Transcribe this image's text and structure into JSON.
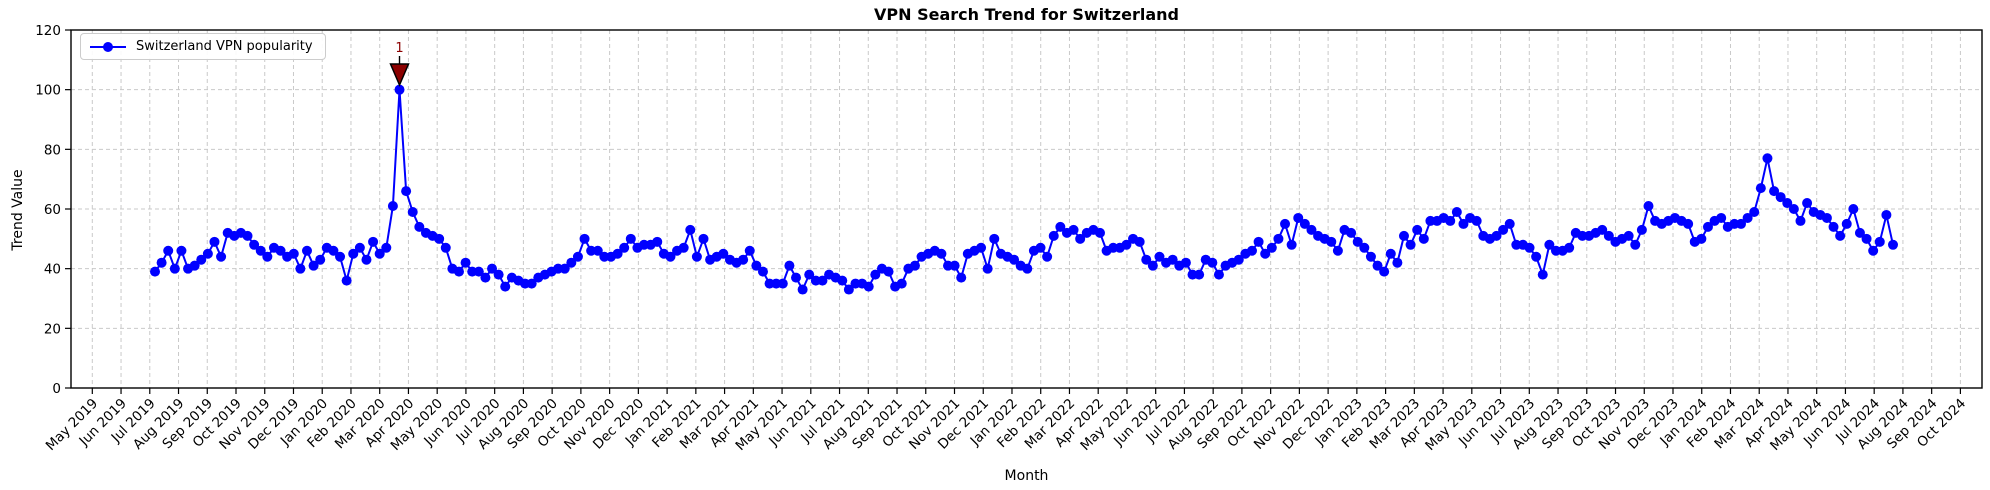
{
  "title": "VPN Search Trend for Switzerland",
  "x_axis_title": "Month",
  "y_axis_title": "Trend Value",
  "legend": {
    "label": "Switzerland VPN popularity"
  },
  "annotation": {
    "text": "1"
  },
  "colors": {
    "line": "#0000ff",
    "marker": "#0000ff",
    "grid": "#c9c9c9",
    "axis": "#000000",
    "annotation_fill": "#8b0000",
    "annotation_text": "#8b0000",
    "background": "#ffffff",
    "legend_border": "#cccccc"
  },
  "chart_data": {
    "type": "line",
    "title": "VPN Search Trend for Switzerland",
    "xlabel": "Month",
    "ylabel": "Trend Value",
    "ylim": [
      0,
      120
    ],
    "yticks": [
      0,
      20,
      40,
      60,
      80,
      100,
      120
    ],
    "grid": true,
    "grid_style": "dashed",
    "legend_position": "upper left",
    "x_tick_labels": [
      "May 2019",
      "Jun 2019",
      "Jul 2019",
      "Aug 2019",
      "Sep 2019",
      "Oct 2019",
      "Nov 2019",
      "Dec 2019",
      "Jan 2020",
      "Feb 2020",
      "Mar 2020",
      "Apr 2020",
      "May 2020",
      "Jun 2020",
      "Jul 2020",
      "Aug 2020",
      "Sep 2020",
      "Oct 2020",
      "Nov 2020",
      "Dec 2020",
      "Jan 2021",
      "Feb 2021",
      "Mar 2021",
      "Apr 2021",
      "May 2021",
      "Jun 2021",
      "Jul 2021",
      "Aug 2021",
      "Sep 2021",
      "Oct 2021",
      "Nov 2021",
      "Dec 2021",
      "Jan 2022",
      "Feb 2022",
      "Mar 2022",
      "Apr 2022",
      "May 2022",
      "Jun 2022",
      "Jul 2022",
      "Aug 2022",
      "Sep 2022",
      "Oct 2022",
      "Nov 2022",
      "Dec 2022",
      "Jan 2023",
      "Feb 2023",
      "Mar 2023",
      "Apr 2023",
      "May 2023",
      "Jun 2023",
      "Jul 2023",
      "Aug 2023",
      "Sep 2023",
      "Oct 2023",
      "Nov 2023",
      "Dec 2023",
      "Jan 2024",
      "Feb 2024",
      "Mar 2024",
      "Apr 2024",
      "May 2024",
      "Jun 2024",
      "Jul 2024",
      "Aug 2024",
      "Sep 2024",
      "Oct 2024"
    ],
    "series": [
      {
        "name": "Switzerland VPN popularity",
        "sampling": "weekly",
        "first_point_month": "mid Jul 2019",
        "last_point_month": "late Jul 2024",
        "values": [
          39,
          42,
          46,
          40,
          46,
          40,
          41,
          43,
          45,
          49,
          44,
          52,
          51,
          52,
          51,
          48,
          46,
          44,
          47,
          46,
          44,
          45,
          40,
          46,
          41,
          43,
          47,
          46,
          44,
          36,
          45,
          47,
          43,
          49,
          45,
          47,
          61,
          100,
          66,
          59,
          54,
          52,
          51,
          50,
          47,
          40,
          39,
          42,
          39,
          39,
          37,
          40,
          38,
          34,
          37,
          36,
          35,
          35,
          37,
          38,
          39,
          40,
          40,
          42,
          44,
          50,
          46,
          46,
          44,
          44,
          45,
          47,
          50,
          47,
          48,
          48,
          49,
          45,
          44,
          46,
          47,
          53,
          44,
          50,
          43,
          44,
          45,
          43,
          42,
          43,
          46,
          41,
          39,
          35,
          35,
          35,
          41,
          37,
          33,
          38,
          36,
          36,
          38,
          37,
          36,
          33,
          35,
          35,
          34,
          38,
          40,
          39,
          34,
          35,
          40,
          41,
          44,
          45,
          46,
          45,
          41,
          41,
          37,
          45,
          46,
          47,
          40,
          50,
          45,
          44,
          43,
          41,
          40,
          46,
          47,
          44,
          51,
          54,
          52,
          53,
          50,
          52,
          53,
          52,
          46,
          47,
          47,
          48,
          50,
          49,
          43,
          41,
          44,
          42,
          43,
          41,
          42,
          38,
          38,
          43,
          42,
          38,
          41,
          42,
          43,
          45,
          46,
          49,
          45,
          47,
          50,
          55,
          48,
          57,
          55,
          53,
          51,
          50,
          49,
          46,
          53,
          52,
          49,
          47,
          44,
          41,
          39,
          45,
          42,
          51,
          48,
          53,
          50,
          56,
          56,
          57,
          56,
          59,
          55,
          57,
          56,
          51,
          50,
          51,
          53,
          55,
          48,
          48,
          47,
          44,
          38,
          48,
          46,
          46,
          47,
          52,
          51,
          51,
          52,
          53,
          51,
          49,
          50,
          51,
          48,
          53,
          61,
          56,
          55,
          56,
          57,
          56,
          55,
          49,
          50,
          54,
          56,
          57,
          54,
          55,
          55,
          57,
          59,
          67,
          77,
          66,
          64,
          62,
          60,
          56,
          62,
          59,
          58,
          57,
          54,
          51,
          55,
          60,
          52,
          50,
          46,
          49,
          58,
          48
        ]
      }
    ],
    "annotations": [
      {
        "label": "1",
        "point_index": 37,
        "value": 100,
        "marker": "down-triangle"
      }
    ]
  }
}
